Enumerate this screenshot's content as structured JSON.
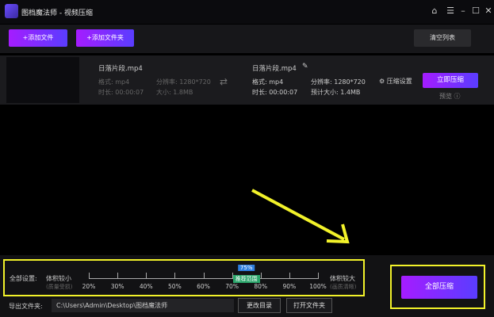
{
  "app": {
    "title": "图档魔法师 - 视频压缩"
  },
  "toolbar": {
    "add_file": "+添加文件",
    "add_folder": "+添加文件夹",
    "clear_list": "清空列表"
  },
  "file": {
    "source": {
      "name": "日落片段.mp4",
      "format": "格式: mp4",
      "resolution": "分辨率: 1280*720",
      "duration": "时长: 00:00:07",
      "size": "大小: 1.8MB"
    },
    "output": {
      "name": "日落片段.mp4",
      "format": "格式: mp4",
      "resolution": "分辨率: 1280*720",
      "duration": "时长: 00:00:07",
      "size": "预计大小: 1.4MB"
    },
    "settings": "压缩设置",
    "compress_now": "立即压缩",
    "preview": "预览"
  },
  "global": {
    "label": "全部设置:",
    "min_label": "体积较小",
    "min_sub": "(质量受损)",
    "max_label": "体积较大",
    "max_sub": "(画质清晰)",
    "ticks": [
      "20%",
      "30%",
      "40%",
      "50%",
      "60%",
      "70%",
      "80%",
      "90%",
      "100%"
    ],
    "value": "75%",
    "value_percent": 75,
    "recommend": "推荐范围"
  },
  "export": {
    "label": "导出文件夹:",
    "path": "C:\\Users\\Admin\\Desktop\\图档魔法师",
    "change": "更改目录",
    "open": "打开文件夹"
  },
  "compress_all": "全部压缩",
  "colors": {
    "accent_start": "#a51cff",
    "accent_end": "#5a3dff",
    "highlight": "#f2f22a",
    "recommend": "#2aa56a",
    "value_badge": "#2f7fe0"
  }
}
